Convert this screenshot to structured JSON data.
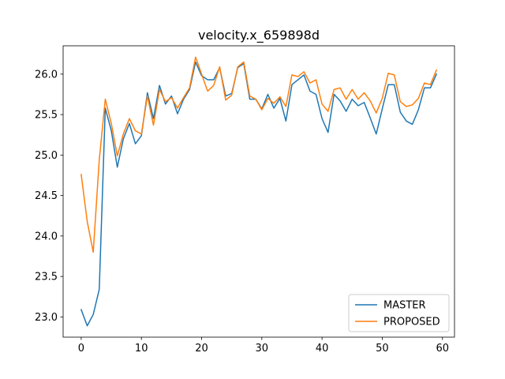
{
  "chart_data": {
    "type": "line",
    "title": "velocity.x_659898d",
    "xlabel": "",
    "ylabel": "",
    "xlim": [
      -3,
      62
    ],
    "ylim": [
      22.75,
      26.35
    ],
    "x_ticks": [
      0,
      10,
      20,
      30,
      40,
      50,
      60
    ],
    "y_ticks": [
      23.0,
      23.5,
      24.0,
      24.5,
      25.0,
      25.5,
      26.0
    ],
    "x_tick_labels": [
      "0",
      "10",
      "20",
      "30",
      "40",
      "50",
      "60"
    ],
    "y_tick_labels": [
      "23.0",
      "23.5",
      "24.0",
      "24.5",
      "25.0",
      "25.5",
      "26.0"
    ],
    "grid": false,
    "legend_position": "lower-right",
    "x": [
      0,
      1,
      2,
      3,
      4,
      5,
      6,
      7,
      8,
      9,
      10,
      11,
      12,
      13,
      14,
      15,
      16,
      17,
      18,
      19,
      20,
      21,
      22,
      23,
      24,
      25,
      26,
      27,
      28,
      29,
      30,
      31,
      32,
      33,
      34,
      35,
      36,
      37,
      38,
      39,
      40,
      41,
      42,
      43,
      44,
      45,
      46,
      47,
      48,
      49,
      50,
      51,
      52,
      53,
      54,
      55,
      56,
      57,
      58,
      59
    ],
    "series": [
      {
        "name": "MASTER",
        "color": "#1f77b4",
        "values": [
          23.09,
          22.89,
          23.03,
          23.34,
          25.58,
          25.3,
          24.85,
          25.2,
          25.39,
          25.14,
          25.24,
          25.77,
          25.45,
          25.86,
          25.63,
          25.73,
          25.51,
          25.69,
          25.81,
          26.15,
          25.98,
          25.93,
          25.93,
          26.08,
          25.73,
          25.76,
          26.08,
          26.13,
          25.69,
          25.69,
          25.57,
          25.75,
          25.58,
          25.7,
          25.42,
          25.87,
          25.93,
          25.99,
          25.79,
          25.75,
          25.45,
          25.28,
          25.75,
          25.67,
          25.54,
          25.69,
          25.61,
          25.65,
          25.46,
          25.26,
          25.57,
          25.87,
          25.87,
          25.53,
          25.42,
          25.38,
          25.56,
          25.83,
          25.83,
          26.0
        ]
      },
      {
        "name": "PROPOSED",
        "color": "#ff7f0e",
        "values": [
          24.76,
          24.18,
          23.8,
          24.94,
          25.69,
          25.39,
          24.99,
          25.26,
          25.45,
          25.3,
          25.26,
          25.73,
          25.37,
          25.81,
          25.66,
          25.71,
          25.58,
          25.71,
          25.83,
          26.21,
          26.0,
          25.79,
          25.86,
          26.09,
          25.68,
          25.74,
          26.09,
          26.15,
          25.73,
          25.69,
          25.56,
          25.7,
          25.64,
          25.72,
          25.6,
          25.99,
          25.97,
          26.03,
          25.89,
          25.93,
          25.63,
          25.54,
          25.81,
          25.83,
          25.69,
          25.81,
          25.69,
          25.77,
          25.67,
          25.52,
          25.7,
          26.01,
          25.99,
          25.66,
          25.6,
          25.62,
          25.7,
          25.89,
          25.87,
          26.05
        ]
      }
    ]
  }
}
